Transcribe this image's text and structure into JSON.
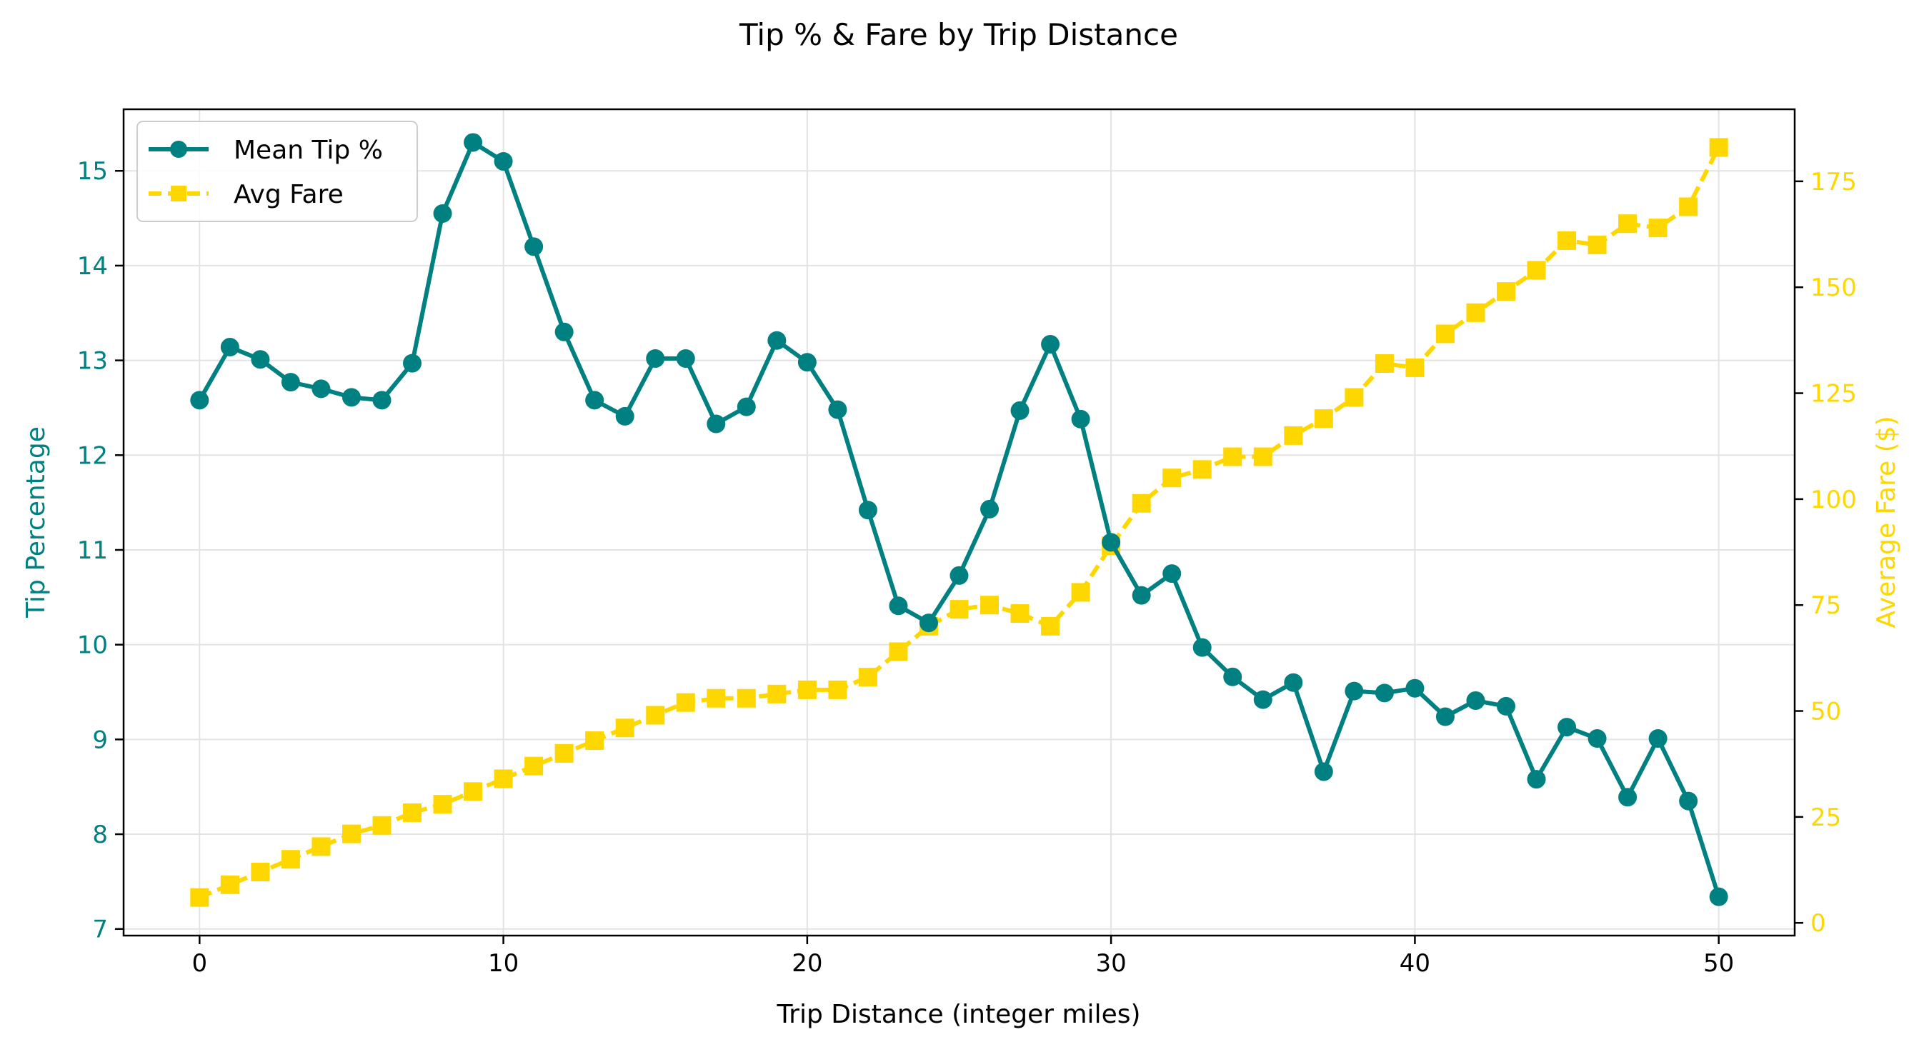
{
  "chart_data": {
    "type": "line",
    "title": "Tip % & Fare by Trip Distance",
    "xlabel": "Trip Distance (integer miles)",
    "ylabel_left": "Tip Percentage",
    "ylabel_right": "Average Fare ($)",
    "xlim": [
      -2.5,
      52.5
    ],
    "ylim_left": [
      6.93,
      15.65
    ],
    "ylim_right": [
      -3,
      192
    ],
    "x_ticks": [
      0,
      10,
      20,
      30,
      40,
      50
    ],
    "y_ticks_left": [
      7,
      8,
      9,
      10,
      11,
      12,
      13,
      14,
      15
    ],
    "y_ticks_right": [
      0,
      25,
      50,
      75,
      100,
      125,
      150,
      175
    ],
    "grid": true,
    "legend_position": "top-left",
    "x": [
      0,
      1,
      2,
      3,
      4,
      5,
      6,
      7,
      8,
      9,
      10,
      11,
      12,
      13,
      14,
      15,
      16,
      17,
      18,
      19,
      20,
      21,
      22,
      23,
      24,
      25,
      26,
      27,
      28,
      29,
      30,
      31,
      32,
      33,
      34,
      35,
      36,
      37,
      38,
      39,
      40,
      41,
      42,
      43,
      44,
      45,
      46,
      47,
      48,
      49,
      50
    ],
    "series": [
      {
        "name": "Mean Tip %",
        "axis": "left",
        "color": "#008080",
        "marker": "circle",
        "line_style": "solid",
        "values": [
          12.58,
          13.14,
          13.01,
          12.77,
          12.7,
          12.61,
          12.58,
          12.97,
          14.55,
          15.3,
          15.1,
          14.2,
          13.3,
          12.58,
          12.41,
          13.02,
          13.02,
          12.33,
          12.51,
          13.21,
          12.98,
          12.48,
          11.42,
          10.41,
          10.23,
          10.73,
          11.43,
          12.47,
          13.17,
          12.38,
          11.08,
          10.52,
          10.75,
          9.97,
          9.66,
          9.42,
          9.6,
          8.66,
          9.51,
          9.49,
          9.54,
          9.24,
          9.41,
          9.35,
          8.58,
          9.13,
          9.01,
          8.39,
          9.01,
          8.35,
          7.34
        ]
      },
      {
        "name": "Avg Fare",
        "axis": "right",
        "color": "#FFD700",
        "marker": "square",
        "line_style": "dashed",
        "values": [
          6,
          9,
          12,
          15,
          18,
          21,
          23,
          26,
          28,
          31,
          34,
          37,
          40,
          43,
          46,
          49,
          52,
          53,
          53,
          54,
          55,
          55,
          58,
          64,
          70,
          74,
          75,
          73,
          70,
          78,
          89,
          99,
          105,
          107,
          110,
          110,
          115,
          119,
          124,
          132,
          131,
          139,
          144,
          149,
          154,
          161,
          160,
          165,
          164,
          169,
          183
        ]
      }
    ]
  },
  "colors": {
    "left_axis": "#008080",
    "right_axis": "#FFD700",
    "grid": "#e3e3e3"
  }
}
